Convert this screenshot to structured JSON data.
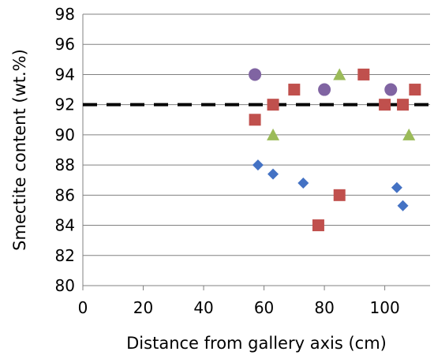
{
  "chart_data": {
    "type": "scatter",
    "title": "",
    "xlabel": "Distance from gallery axis (cm)",
    "ylabel": "Smectite content (wt.%)",
    "xlim": [
      0,
      115
    ],
    "ylim": [
      80,
      98
    ],
    "x_ticks": [
      0,
      20,
      40,
      60,
      80,
      100
    ],
    "y_ticks": [
      80,
      82,
      84,
      86,
      88,
      90,
      92,
      94,
      96,
      98
    ],
    "grid": "horizontal",
    "reference_line": {
      "y": 92,
      "style": "dashed",
      "color": "#000000"
    },
    "series": [
      {
        "marker": "diamond",
        "color": "#4472c4",
        "points": [
          [
            58,
            88.0
          ],
          [
            63,
            87.4
          ],
          [
            73,
            86.8
          ],
          [
            104,
            86.5
          ],
          [
            106,
            85.3
          ]
        ]
      },
      {
        "marker": "square",
        "color": "#c0504d",
        "points": [
          [
            57,
            91.0
          ],
          [
            63,
            92.0
          ],
          [
            70,
            93.0
          ],
          [
            78,
            84.0
          ],
          [
            85,
            86.0
          ],
          [
            93,
            94.0
          ],
          [
            100,
            92.0
          ],
          [
            106,
            92.0
          ],
          [
            110,
            93.0
          ]
        ]
      },
      {
        "marker": "triangle",
        "color": "#9bbb59",
        "points": [
          [
            63,
            90.0
          ],
          [
            85,
            94.0
          ],
          [
            108,
            90.0
          ]
        ]
      },
      {
        "marker": "circle",
        "color": "#8064a2",
        "points": [
          [
            57,
            94.0
          ],
          [
            80,
            93.0
          ],
          [
            102,
            93.0
          ]
        ]
      }
    ]
  },
  "colors": {
    "grid": "#808080",
    "axis": "#808080",
    "background": "#ffffff"
  }
}
